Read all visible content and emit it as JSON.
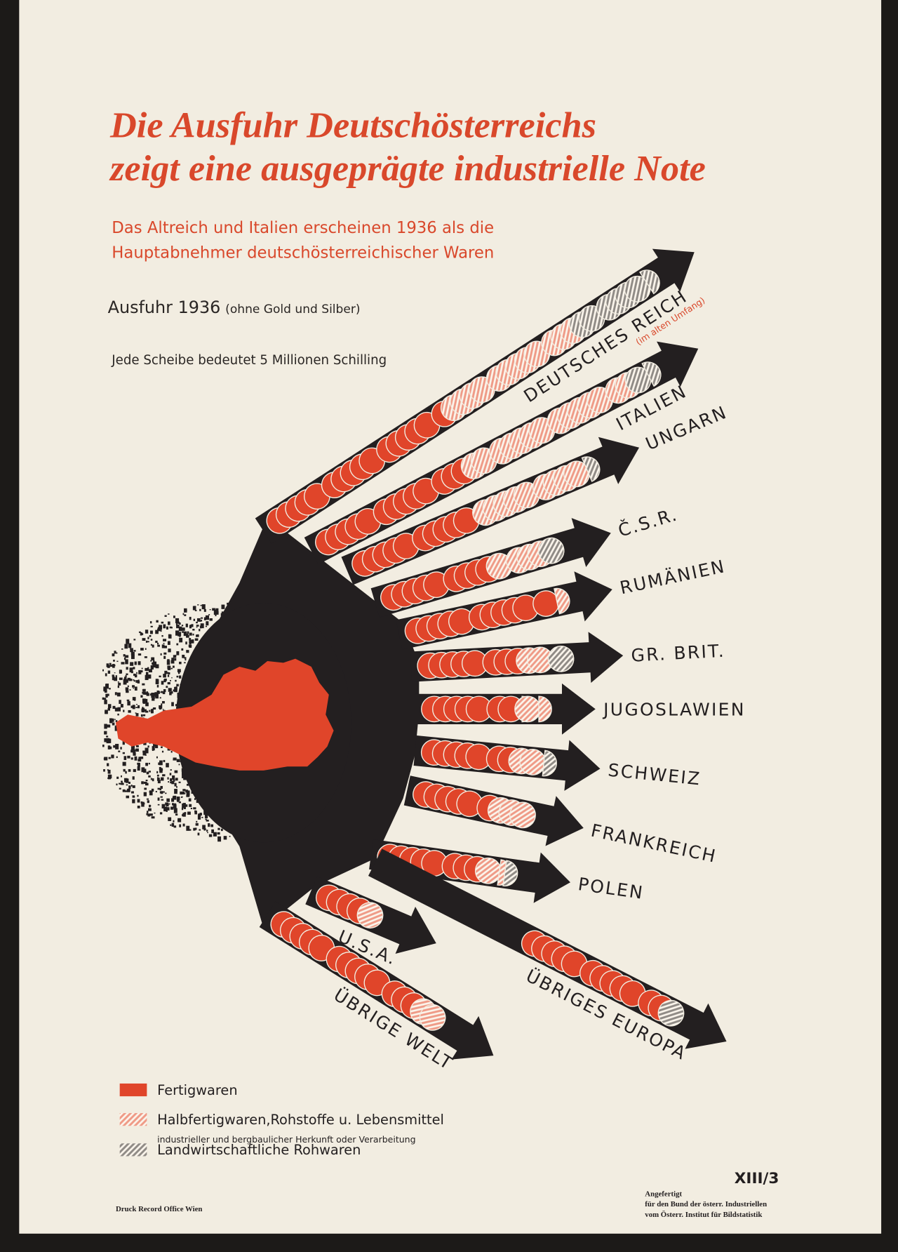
{
  "chart_data": {
    "type": "isotype",
    "title_lines": [
      "Die Ausfuhr Deutschösterreichs",
      "zeigt eine ausgeprägte industrielle Note"
    ],
    "subtitle_lines": [
      "Das Altreich und Italien erscheinen  1936  als die",
      "Hauptabnehmer  deutschösterreichischer Waren"
    ],
    "measure": "Ausfuhr 1936",
    "measure_note": "(ohne Gold und Silber)",
    "scale_note": "Jede Scheibe bedeutet 5 Millionen Schilling",
    "categories": [
      "DEUTSCHES REICH",
      "ITALIEN",
      "UNGARN",
      "Č.S.R.",
      "RUMÄNIEN",
      "GR. BRIT.",
      "JUGOSLAWIEN",
      "SCHWEIZ",
      "FRANKREICH",
      "POLEN",
      "ÜBRIGES EUROPA",
      "U.S.A.",
      "ÜBRIGE WELT"
    ],
    "category_note": "(im alten Umfang)",
    "series": [
      {
        "name": "Fertigwaren",
        "color": "#e0452a",
        "pattern": "solid",
        "values": [
          16,
          13,
          10,
          9,
          11,
          8,
          7.5,
          7,
          6,
          8,
          12,
          4,
          13
        ]
      },
      {
        "name": "Halbfertigwaren,Rohstoffe u. Lebensmittel",
        "color": "#ef9a86",
        "pattern": "hatched",
        "values": [
          12,
          14,
          9,
          4,
          0.5,
          2,
          1.5,
          2,
          3,
          1.5,
          0,
          1,
          2
        ]
      },
      {
        "name": "Landwirtschaftliche Rohwaren",
        "color": "#8f8a85",
        "pattern": "hatched",
        "values": [
          6.5,
          1.5,
          0.5,
          1,
          0,
          1,
          0,
          0.5,
          0,
          0.5,
          1,
          0,
          0
        ]
      }
    ],
    "series_note": "industrieller und bergbaulicher Herkunft oder Verarbeitung",
    "footer": {
      "printer": "Druck Record Office Wien",
      "code": "XIII/3",
      "credit_lines": [
        "Angefertigt",
        "für den Bund der österr. Industriellen",
        "vom Österr. Institut für Bildstatistik"
      ]
    }
  }
}
